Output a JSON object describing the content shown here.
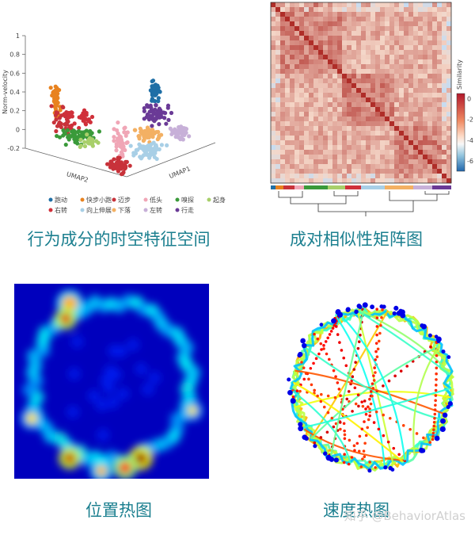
{
  "captions": {
    "umap": "行为成分的时空特征空间",
    "matrix": "成对相似性矩阵图",
    "position": "位置热图",
    "speed": "速度热图"
  },
  "watermark": "知乎 @BehaviorAtlas",
  "chart_data": [
    {
      "type": "scatter",
      "ylabel": "Norm-velocity",
      "xlabel": "UMAP2",
      "zlabel": "UMAP1",
      "yticks": [
        "-0.2",
        "0",
        "0.2",
        "0.4",
        "0.6",
        "0.8",
        "1"
      ],
      "legend_position": "bottom",
      "series": [
        {
          "name": "跑动",
          "color": "#1f6fa6"
        },
        {
          "name": "快步小跑",
          "color": "#e8821f"
        },
        {
          "name": "迈步",
          "color": "#c8323a"
        },
        {
          "name": "低头",
          "color": "#f0a6b6"
        },
        {
          "name": "嗅探",
          "color": "#3a9a3a"
        },
        {
          "name": "起身",
          "color": "#a8cf6a"
        },
        {
          "name": "右转",
          "color": "#d0303a"
        },
        {
          "name": "向上伸展",
          "color": "#a8cfe6"
        },
        {
          "name": "下落",
          "color": "#f3b063"
        },
        {
          "name": "左转",
          "color": "#c7b0d8"
        },
        {
          "name": "行走",
          "color": "#6a3a96"
        }
      ]
    },
    {
      "type": "heatmap",
      "colorbar_label": "Similarity",
      "colorbar_ticks": [
        "0",
        "-2",
        "-4",
        "-6"
      ],
      "colorbar_range": [
        -7,
        0.5
      ]
    },
    {
      "type": "heatmap",
      "colormap": "jet"
    },
    {
      "type": "scatter",
      "colormap": "jet"
    }
  ]
}
